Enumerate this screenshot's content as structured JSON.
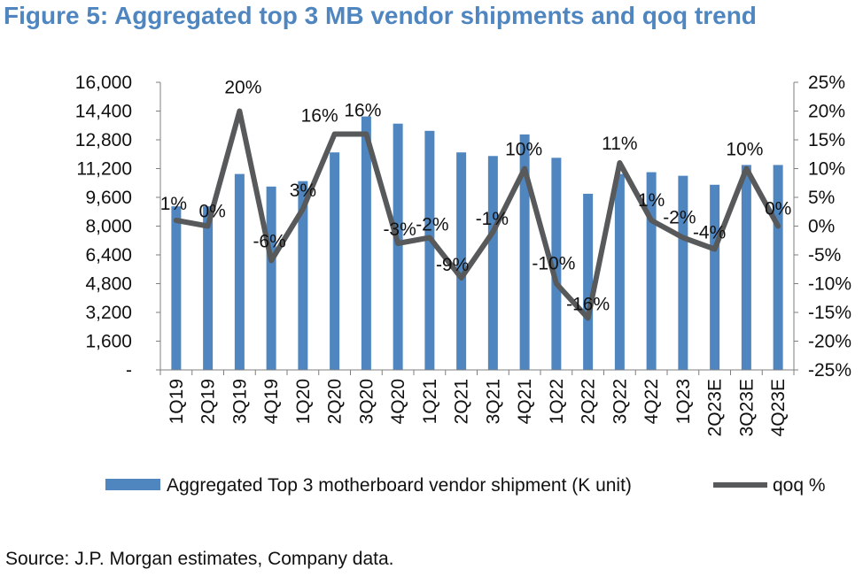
{
  "figure": {
    "title": "Figure 5: Aggregated top 3 MB vendor shipments and qoq trend",
    "source": "Source: J.P. Morgan estimates, Company data."
  },
  "colors": {
    "bar": "#4f86c0",
    "line": "#58595b",
    "title": "#4f86c0"
  },
  "chart_data": {
    "type": "bar",
    "categories": [
      "1Q19",
      "2Q19",
      "3Q19",
      "4Q19",
      "1Q20",
      "2Q20",
      "3Q20",
      "4Q20",
      "1Q21",
      "2Q21",
      "3Q21",
      "4Q21",
      "1Q22",
      "2Q22",
      "3Q22",
      "4Q22",
      "1Q23",
      "2Q23E",
      "3Q23E",
      "4Q23E"
    ],
    "series": [
      {
        "name": "Aggregated Top 3 motherboard vendor shipment (K unit)",
        "type": "bar",
        "axis": "left",
        "values": [
          9100,
          9100,
          10900,
          10200,
          10500,
          12100,
          14100,
          13700,
          13300,
          12100,
          11900,
          13100,
          11800,
          9800,
          10900,
          11000,
          10800,
          10300,
          11400,
          11400
        ]
      },
      {
        "name": "qoq %",
        "type": "line",
        "axis": "right",
        "values": [
          1,
          0,
          20,
          -6,
          3,
          16,
          16,
          -3,
          -2,
          -9,
          -1,
          10,
          -10,
          -16,
          11,
          1,
          -2,
          -4,
          10,
          0
        ],
        "labels": [
          "1%",
          "0%",
          "20%",
          "-6%",
          "3%",
          "16%",
          "16%",
          "-3%",
          "-2%",
          "-9%",
          "-1%",
          "10%",
          "-10%",
          "-16%",
          "11%",
          "1%",
          "-2%",
          "-4%",
          "10%",
          "0%"
        ]
      }
    ],
    "y_left": {
      "min": 0,
      "max": 16000,
      "ticks": [
        0,
        1600,
        3200,
        4800,
        6400,
        8000,
        9600,
        11200,
        12800,
        14400,
        16000
      ],
      "tick_labels": [
        "-",
        "1,600",
        "3,200",
        "4,800",
        "6,400",
        "8,000",
        "9,600",
        "11,200",
        "12,800",
        "14,400",
        "16,000"
      ]
    },
    "y_right": {
      "min": -25,
      "max": 25,
      "ticks": [
        -25,
        -20,
        -15,
        -10,
        -5,
        0,
        5,
        10,
        15,
        20,
        25
      ],
      "tick_labels": [
        "-25%",
        "-20%",
        "-15%",
        "-10%",
        "-5%",
        "0%",
        "5%",
        "10%",
        "15%",
        "20%",
        "25%"
      ]
    },
    "legend_position": "bottom",
    "grid": false
  }
}
